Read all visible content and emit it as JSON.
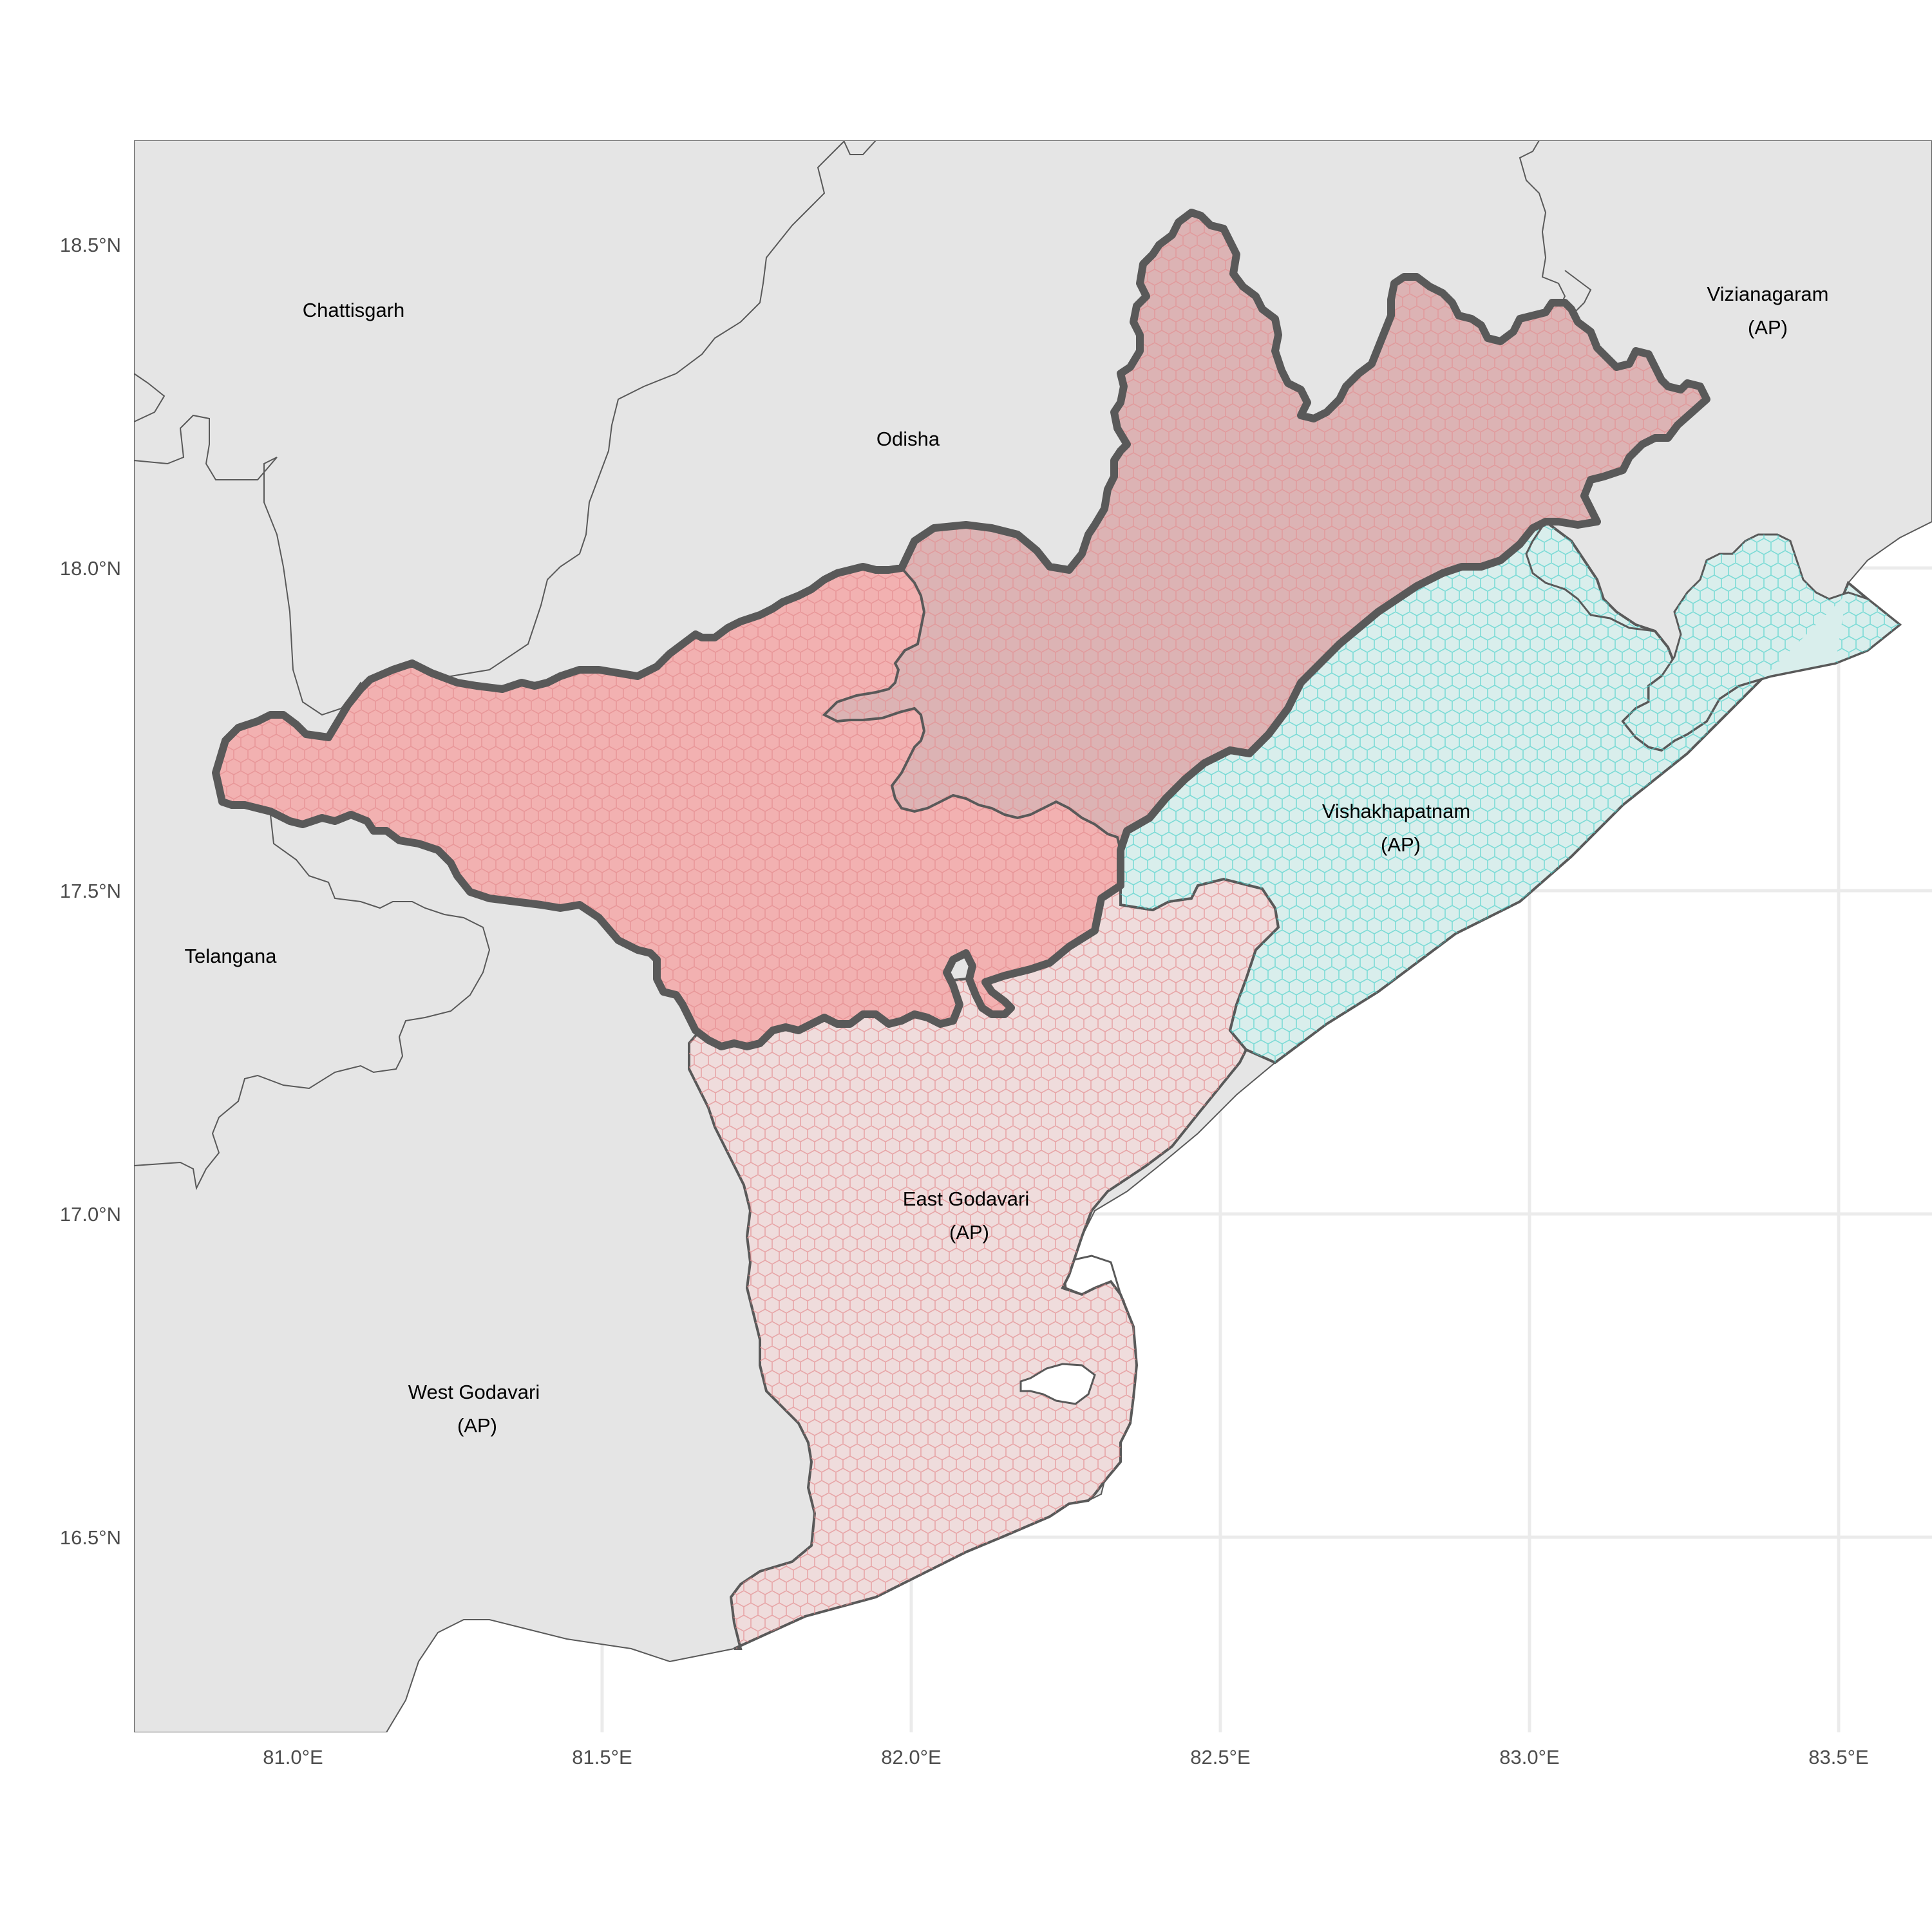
{
  "map": {
    "x_axis": {
      "ticks": [
        {
          "value": 81.0,
          "label": "81.0°E"
        },
        {
          "value": 81.5,
          "label": "81.5°E"
        },
        {
          "value": 82.0,
          "label": "82.0°E"
        },
        {
          "value": 82.5,
          "label": "82.5°E"
        },
        {
          "value": 83.0,
          "label": "83.0°E"
        },
        {
          "value": 83.5,
          "label": "83.5°E"
        }
      ]
    },
    "y_axis": {
      "ticks": [
        {
          "value": 18.5,
          "label": "18.5°N"
        },
        {
          "value": 18.0,
          "label": "18.0°N"
        },
        {
          "value": 17.5,
          "label": "17.5°N"
        },
        {
          "value": 17.0,
          "label": "17.0°N"
        },
        {
          "value": 16.5,
          "label": "16.5°N"
        }
      ]
    },
    "labels": {
      "chattisgarh": "Chattisgarh",
      "odisha": "Odisha",
      "telangana": "Telangana",
      "vizianagaram_1": "Vizianagaram",
      "vizianagaram_2": "(AP)",
      "vishakhapatnam_1": "Vishakhapatnam",
      "vishakhapatnam_2": "(AP)",
      "east_godavari_1": "East Godavari",
      "east_godavari_2": "(AP)",
      "west_godavari_1": "West Godavari",
      "west_godavari_2": "(AP)"
    },
    "colors": {
      "land": "#e5e5e5",
      "sea": "#ffffff",
      "grid": "#ebebeb",
      "border": "#595959",
      "red_region": "#f2b1b1",
      "mauve_region": "#dcb3b4",
      "east_godavari": "#efdcdc",
      "vishakhapatnam": "#d9eeec",
      "hex_red": "#e88a8c",
      "hex_teal": "#5cd6d0"
    }
  }
}
